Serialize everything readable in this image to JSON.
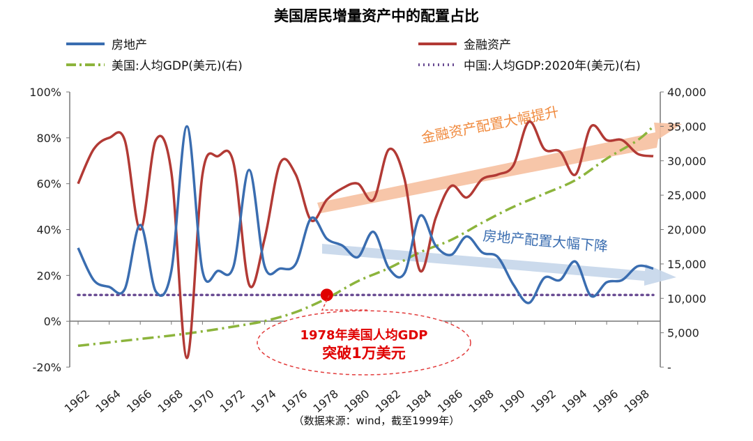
{
  "chart_data": {
    "type": "line",
    "title": "美国居民增量资产中的配置占比",
    "source": "（数据来源：wind，截至1999年）",
    "x_ticks": [
      "1962",
      "1964",
      "1966",
      "1968",
      "1970",
      "1972",
      "1974",
      "1976",
      "1978",
      "1980",
      "1982",
      "1984",
      "1986",
      "1988",
      "1990",
      "1992",
      "1994",
      "1996",
      "1998"
    ],
    "xlim": [
      1962,
      1999
    ],
    "ylim_left": [
      -20,
      100
    ],
    "ylim_right": [
      0,
      40000
    ],
    "left_ticks": [
      "-20%",
      "0%",
      "20%",
      "40%",
      "60%",
      "80%",
      "100%"
    ],
    "right_ticks": [
      "-",
      "5,000",
      "10,000",
      "15,000",
      "20,000",
      "25,000",
      "30,000",
      "35,000",
      "40,000"
    ],
    "colors": {
      "real_estate": "#3a6db0",
      "financial": "#b23a35",
      "us_gdp": "#8cb43c",
      "china_gdp": "#6a4c93",
      "highlight": "#e00000",
      "arrow_fin": "#f6c0a0",
      "arrow_re": "#c5d6ea",
      "annotation_fin": "#f08a3e",
      "annotation_re": "#3a6db0"
    },
    "series": [
      {
        "name": "房地产",
        "axis": "left",
        "x": [
          1962,
          1963,
          1964,
          1965,
          1966,
          1967,
          1968,
          1969,
          1970,
          1971,
          1972,
          1973,
          1974,
          1975,
          1976,
          1977,
          1978,
          1979,
          1980,
          1981,
          1982,
          1983,
          1984,
          1985,
          1986,
          1987,
          1988,
          1989,
          1990,
          1991,
          1992,
          1993,
          1994,
          1995,
          1996,
          1997,
          1998,
          1999
        ],
        "values": [
          32,
          18,
          15,
          14,
          42,
          13,
          22,
          85,
          22,
          22,
          24,
          66,
          24,
          23,
          25,
          45,
          36,
          33,
          28,
          39,
          23,
          21,
          46,
          33,
          29,
          37,
          30,
          28,
          16,
          8,
          19,
          18,
          26,
          11,
          17,
          18,
          24,
          23
        ]
      },
      {
        "name": "金融资产",
        "axis": "left",
        "x": [
          1962,
          1963,
          1964,
          1965,
          1966,
          1967,
          1968,
          1969,
          1970,
          1971,
          1972,
          1973,
          1974,
          1975,
          1976,
          1977,
          1978,
          1979,
          1980,
          1981,
          1982,
          1983,
          1984,
          1985,
          1986,
          1987,
          1988,
          1989,
          1990,
          1991,
          1992,
          1993,
          1994,
          1995,
          1996,
          1997,
          1998,
          1999
        ],
        "values": [
          60,
          75,
          80,
          79,
          40,
          79,
          65,
          -16,
          64,
          72,
          69,
          16,
          36,
          69,
          64,
          44,
          53,
          58,
          60,
          53,
          75,
          62,
          22,
          45,
          59,
          54,
          62,
          64,
          68,
          87,
          75,
          74,
          64,
          85,
          79,
          79,
          73,
          72
        ]
      },
      {
        "name": "美国:人均GDP(美元)(右)",
        "axis": "right",
        "style": "dash-dot",
        "x": [
          1962,
          1964,
          1966,
          1968,
          1970,
          1972,
          1974,
          1976,
          1978,
          1980,
          1982,
          1984,
          1986,
          1988,
          1990,
          1992,
          1994,
          1996,
          1998,
          1999
        ],
        "values": [
          3100,
          3600,
          4100,
          4600,
          5200,
          5900,
          6700,
          8000,
          10000,
          12500,
          14400,
          16700,
          18500,
          21000,
          23300,
          25200,
          27200,
          30300,
          33000,
          35000
        ]
      },
      {
        "name": "中国:人均GDP:2020年(美元)(右)",
        "axis": "right",
        "style": "dotted",
        "x": [
          1962,
          1999
        ],
        "values": [
          10500,
          10500
        ]
      }
    ],
    "annotations": {
      "fin_arrow_text": "金融资产配置大幅提升",
      "re_arrow_text": "房地产配置大幅下降",
      "callout_line1": "1978年美国人均GDP",
      "callout_line2": "突破1万美元",
      "highlight_point": {
        "x": 1978,
        "value": 10500
      }
    },
    "legend_placement": "top"
  }
}
